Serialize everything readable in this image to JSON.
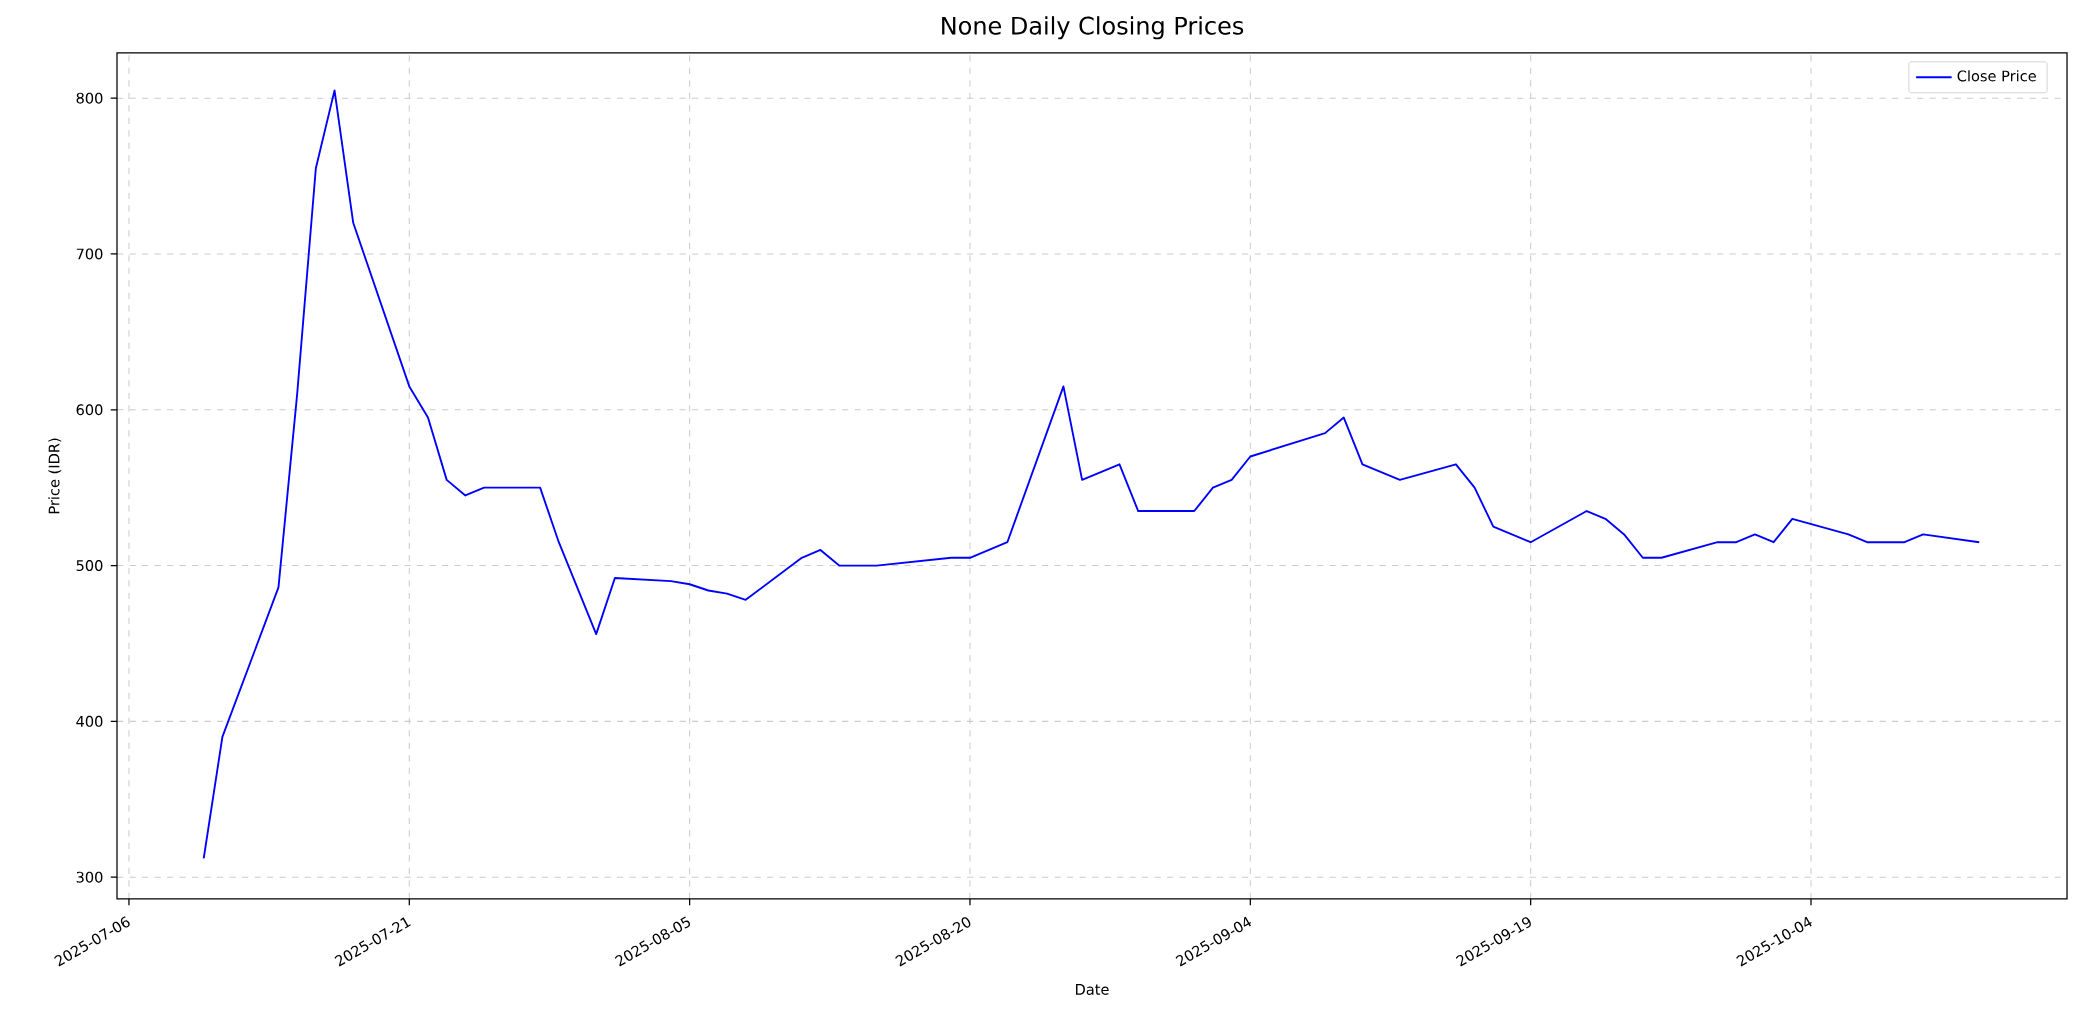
{
  "chart_data": {
    "type": "line",
    "title": "None Daily Closing Prices",
    "xlabel": "Date",
    "ylabel": "Price (IDR)",
    "x": [
      "2025-07-10",
      "2025-07-11",
      "2025-07-14",
      "2025-07-15",
      "2025-07-16",
      "2025-07-17",
      "2025-07-18",
      "2025-07-21",
      "2025-07-22",
      "2025-07-23",
      "2025-07-24",
      "2025-07-25",
      "2025-07-28",
      "2025-07-29",
      "2025-07-31",
      "2025-08-01",
      "2025-08-04",
      "2025-08-05",
      "2025-08-06",
      "2025-08-07",
      "2025-08-08",
      "2025-08-11",
      "2025-08-12",
      "2025-08-13",
      "2025-08-15",
      "2025-08-19",
      "2025-08-20",
      "2025-08-22",
      "2025-08-25",
      "2025-08-26",
      "2025-08-28",
      "2025-08-29",
      "2025-09-01",
      "2025-09-02",
      "2025-09-03",
      "2025-09-04",
      "2025-09-08",
      "2025-09-09",
      "2025-09-10",
      "2025-09-12",
      "2025-09-15",
      "2025-09-16",
      "2025-09-17",
      "2025-09-19",
      "2025-09-22",
      "2025-09-23",
      "2025-09-24",
      "2025-09-25",
      "2025-09-26",
      "2025-09-29",
      "2025-09-30",
      "2025-10-01",
      "2025-10-02",
      "2025-10-03",
      "2025-10-06",
      "2025-10-07",
      "2025-10-09",
      "2025-10-10",
      "2025-10-13"
    ],
    "series": [
      {
        "name": "Close Price",
        "color": "#0000ff",
        "values": [
          312,
          390,
          486,
          610,
          755,
          805,
          720,
          615,
          595,
          555,
          545,
          550,
          550,
          515,
          456,
          492,
          490,
          488,
          484,
          482,
          478,
          505,
          510,
          500,
          500,
          505,
          505,
          515,
          615,
          555,
          565,
          535,
          535,
          550,
          555,
          570,
          585,
          595,
          565,
          555,
          565,
          550,
          525,
          515,
          535,
          530,
          520,
          505,
          505,
          515,
          515,
          520,
          515,
          530,
          520,
          515,
          515,
          520,
          515
        ]
      }
    ],
    "xlim": [
      "2025-07-05T08:40",
      "2025-10-17T16:45"
    ],
    "ylim": [
      286,
      829
    ],
    "xticks": [
      "2025-07-06",
      "2025-07-21",
      "2025-08-05",
      "2025-08-20",
      "2025-09-04",
      "2025-09-19",
      "2025-10-04"
    ],
    "yticks": [
      300,
      400,
      500,
      600,
      700,
      800
    ],
    "grid": true,
    "legend": "top right"
  }
}
